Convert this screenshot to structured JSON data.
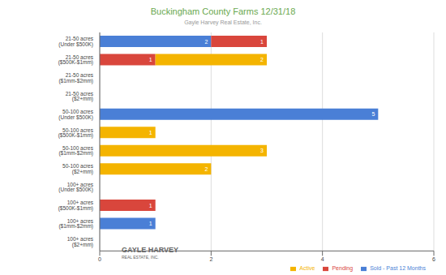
{
  "chart_data": {
    "type": "bar",
    "title": "Buckingham County Farms 12/31/18",
    "subtitle": "Gayle Harvey Real Estate, Inc.",
    "annotations": [
      "GAYLE HARVEY",
      "REAL ESTATE, INC."
    ],
    "orientation": "horizontal",
    "stacked": true,
    "data_labels": true,
    "grid": true,
    "legend": "bottom",
    "categories": [
      "21-50 acres (Under $500K)",
      "21-50 acres ($500K-$1mm)",
      "21-50 acres ($1mm-$2mm)",
      "21-50 acres ($2+mm)",
      "50-100 acres (Under $500K)",
      "50-100 acres ($500K-$1mm)",
      "50-100 acres ($1mm-$2mm)",
      "50-100 acres ($2+mm)",
      "100+ acres (Under $500K)",
      "100+ acres ($500K-$1mm)",
      "100+ acres ($1mm-$2mm)",
      "100+ acres ($2+mm)"
    ],
    "series": [
      {
        "name": "Sold - Past 12 Months",
        "color": "#4a7fd6",
        "values": [
          2,
          0,
          0,
          0,
          5,
          0,
          0,
          0,
          0,
          0,
          1,
          0
        ]
      },
      {
        "name": "Pending",
        "color": "#d9463c",
        "values": [
          1,
          1,
          0,
          0,
          0,
          0,
          0,
          0,
          0,
          1,
          0,
          0
        ]
      },
      {
        "name": "Active",
        "color": "#f4b400",
        "values": [
          0,
          2,
          0,
          0,
          0,
          1,
          3,
          2,
          0,
          0,
          0,
          0
        ]
      }
    ],
    "xlim": [
      0,
      6
    ],
    "xticks": [
      0,
      2,
      4,
      6
    ]
  }
}
